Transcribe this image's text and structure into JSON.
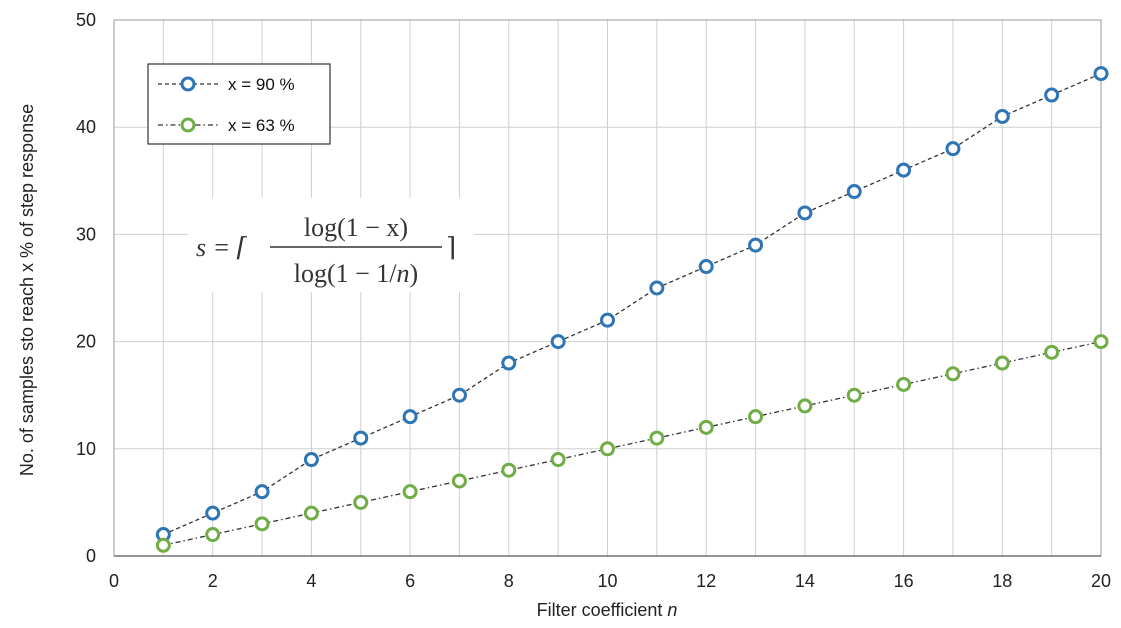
{
  "chart_data": {
    "type": "line",
    "title": "",
    "xlabel": "Filter coefficient ",
    "xlabel_var": "n",
    "ylabel": "No. of samples sto reach x % of step response",
    "xlim": [
      0,
      20
    ],
    "ylim": [
      0,
      50
    ],
    "xticks": [
      0,
      2,
      4,
      6,
      8,
      10,
      12,
      14,
      16,
      18,
      20
    ],
    "yticks": [
      0,
      10,
      20,
      30,
      40,
      50
    ],
    "x_grid_step": 1,
    "grid": true,
    "legend_position": "top-left",
    "x": [
      1,
      2,
      3,
      4,
      5,
      6,
      7,
      8,
      9,
      10,
      11,
      12,
      13,
      14,
      15,
      16,
      17,
      18,
      19,
      20
    ],
    "series": [
      {
        "name": "x = 90 %",
        "color": "#2e75b6",
        "line_style": "dashed",
        "marker": "open-circle",
        "values": [
          2,
          4,
          6,
          9,
          11,
          13,
          15,
          18,
          20,
          22,
          25,
          27,
          29,
          32,
          34,
          36,
          38,
          41,
          43,
          45
        ]
      },
      {
        "name": "x = 63 %",
        "color": "#70ad47",
        "line_style": "dash-dot",
        "marker": "open-circle",
        "values": [
          1,
          2,
          3,
          4,
          5,
          6,
          7,
          8,
          9,
          10,
          11,
          12,
          13,
          14,
          15,
          16,
          17,
          18,
          19,
          20
        ]
      }
    ],
    "annotation": {
      "lhs": "s = ⌈",
      "numerator": "log(1 − x)",
      "denominator_pre": "log(1 − 1/",
      "denominator_var": "n",
      "denominator_post": ")",
      "rhs": "⌉"
    }
  }
}
